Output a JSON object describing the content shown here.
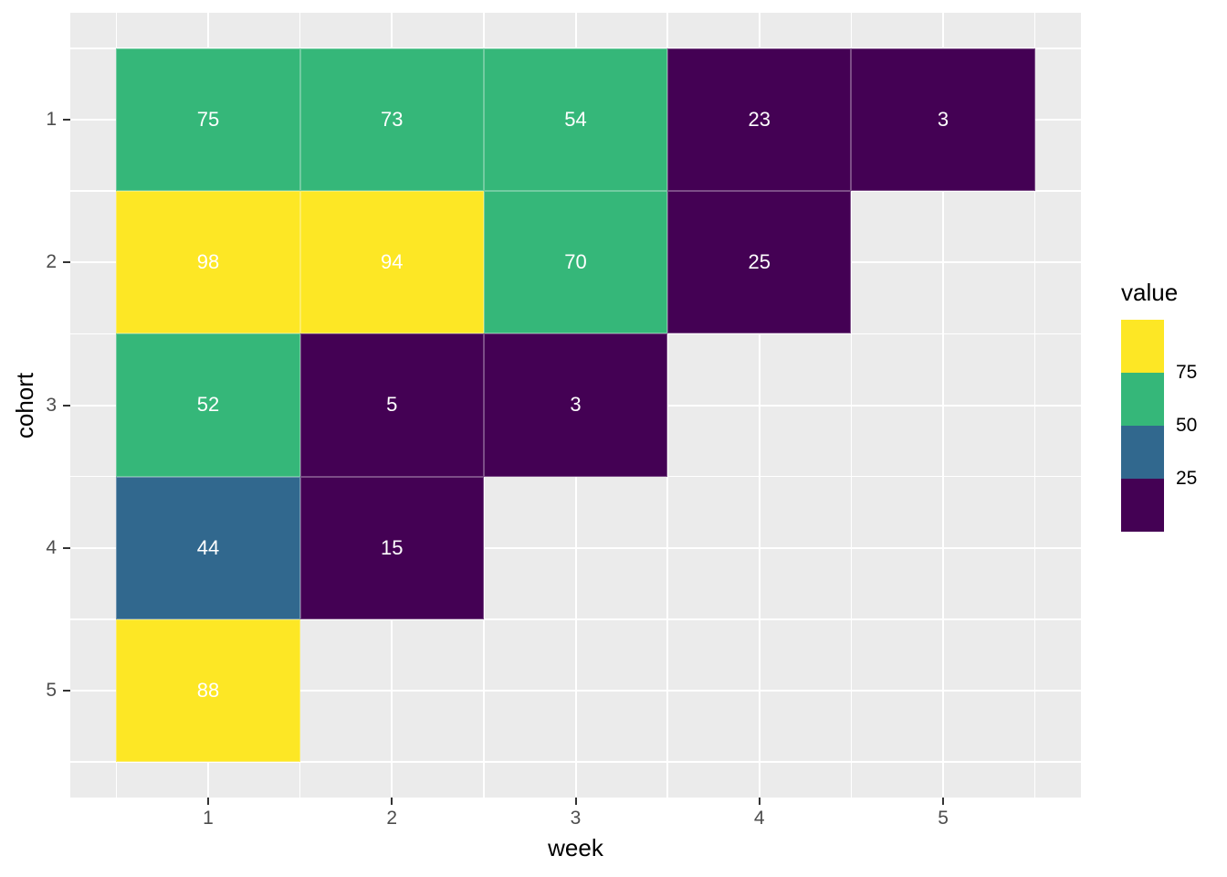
{
  "chart_data": {
    "type": "heatmap",
    "xlabel": "week",
    "ylabel": "cohort",
    "x_ticks": [
      "1",
      "2",
      "3",
      "4",
      "5"
    ],
    "y_ticks": [
      "1",
      "2",
      "3",
      "4",
      "5"
    ],
    "x_range": [
      0.25,
      5.75
    ],
    "y_range": [
      0.25,
      5.75
    ],
    "grid": "on",
    "panel_bg": "#EBEBEB",
    "grid_color": "#FFFFFF",
    "tick_mark_color": "#333333",
    "tick_label_color": "#4D4D4D",
    "tile_label_color": "#FFFFFF",
    "points": [
      {
        "week": 1,
        "cohort": 1,
        "value": 75
      },
      {
        "week": 2,
        "cohort": 1,
        "value": 73
      },
      {
        "week": 3,
        "cohort": 1,
        "value": 54
      },
      {
        "week": 4,
        "cohort": 1,
        "value": 23
      },
      {
        "week": 5,
        "cohort": 1,
        "value": 3
      },
      {
        "week": 1,
        "cohort": 2,
        "value": 98
      },
      {
        "week": 2,
        "cohort": 2,
        "value": 94
      },
      {
        "week": 3,
        "cohort": 2,
        "value": 70
      },
      {
        "week": 4,
        "cohort": 2,
        "value": 25
      },
      {
        "week": 1,
        "cohort": 3,
        "value": 52
      },
      {
        "week": 2,
        "cohort": 3,
        "value": 5
      },
      {
        "week": 3,
        "cohort": 3,
        "value": 3
      },
      {
        "week": 1,
        "cohort": 4,
        "value": 44
      },
      {
        "week": 2,
        "cohort": 4,
        "value": 15
      },
      {
        "week": 1,
        "cohort": 5,
        "value": 88
      }
    ],
    "color_scale": {
      "name": "viridis-binned",
      "bins": [
        {
          "max": 25,
          "color": "#440154"
        },
        {
          "max": 50,
          "color": "#31688E"
        },
        {
          "max": 75,
          "color": "#35B779"
        },
        {
          "max": 100,
          "color": "#FDE725"
        }
      ]
    },
    "legend": {
      "title": "value",
      "position": "right",
      "segments": [
        "#FDE725",
        "#35B779",
        "#31688E",
        "#440154"
      ],
      "labels": [
        "75",
        "50",
        "25"
      ]
    }
  }
}
